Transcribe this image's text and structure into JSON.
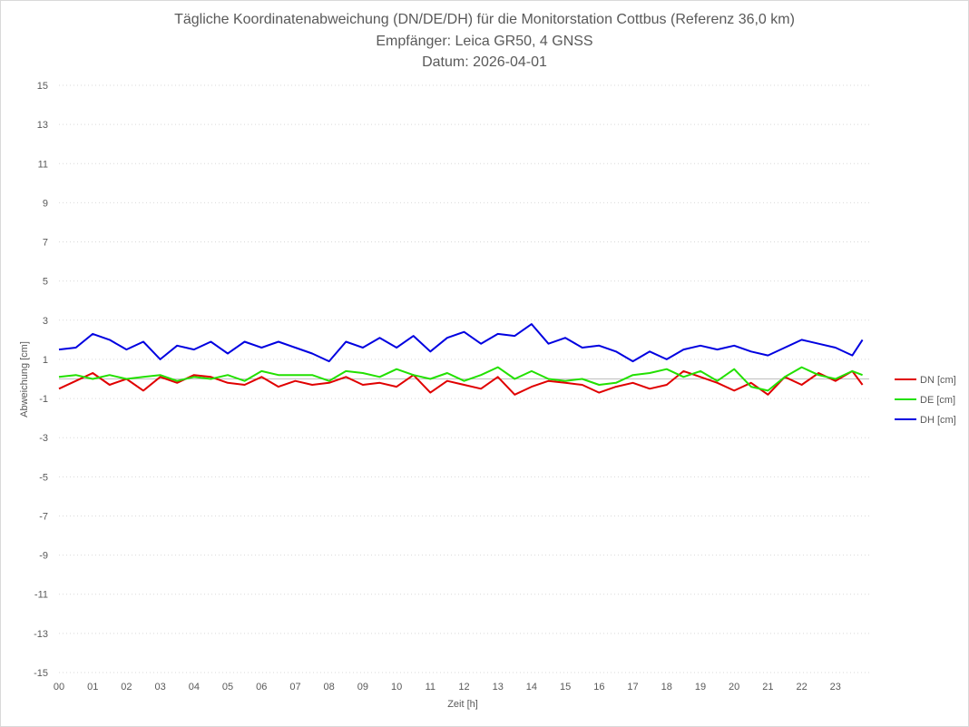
{
  "chart_data": {
    "type": "line",
    "title": "Tägliche Koordinatenabweichung (DN/DE/DH) für die Monitorstation Cottbus (Referenz 36,0 km)",
    "subtitle": "Empfänger: Leica GR50, 4 GNSS",
    "date_line": "Datum: 2026-04-01",
    "xlabel": "Zeit [h]",
    "ylabel": "Abweichung [cm]",
    "xlim": [
      0,
      24
    ],
    "ylim": [
      -15,
      15
    ],
    "x_ticks": [
      "00",
      "01",
      "02",
      "03",
      "04",
      "05",
      "06",
      "07",
      "08",
      "09",
      "10",
      "11",
      "12",
      "13",
      "14",
      "15",
      "16",
      "17",
      "18",
      "19",
      "20",
      "21",
      "22",
      "23"
    ],
    "y_ticks": [
      15,
      13,
      11,
      9,
      7,
      5,
      3,
      1,
      -1,
      -3,
      -5,
      -7,
      -9,
      -11,
      -13,
      -15
    ],
    "grid": "horizontal-dotted",
    "legend_position": "right",
    "x": [
      0.0,
      0.5,
      1.0,
      1.5,
      2.0,
      2.5,
      3.0,
      3.5,
      4.0,
      4.5,
      5.0,
      5.5,
      6.0,
      6.5,
      7.0,
      7.5,
      8.0,
      8.5,
      9.0,
      9.5,
      10.0,
      10.5,
      11.0,
      11.5,
      12.0,
      12.5,
      13.0,
      13.5,
      14.0,
      14.5,
      15.0,
      15.5,
      16.0,
      16.5,
      17.0,
      17.5,
      18.0,
      18.5,
      19.0,
      19.5,
      20.0,
      20.5,
      21.0,
      21.5,
      22.0,
      22.5,
      23.0,
      23.5,
      23.8
    ],
    "series": [
      {
        "name": "DN [cm]",
        "color": "#e00000",
        "values": [
          -0.5,
          -0.1,
          0.3,
          -0.3,
          0.0,
          -0.6,
          0.1,
          -0.2,
          0.2,
          0.1,
          -0.2,
          -0.3,
          0.1,
          -0.4,
          -0.1,
          -0.3,
          -0.2,
          0.1,
          -0.3,
          -0.2,
          -0.4,
          0.2,
          -0.7,
          -0.1,
          -0.3,
          -0.5,
          0.1,
          -0.8,
          -0.4,
          -0.1,
          -0.2,
          -0.3,
          -0.7,
          -0.4,
          -0.2,
          -0.5,
          -0.3,
          0.4,
          0.1,
          -0.2,
          -0.6,
          -0.2,
          -0.8,
          0.1,
          -0.3,
          0.3,
          -0.1,
          0.4,
          -0.3
        ]
      },
      {
        "name": "DE [cm]",
        "color": "#22e000",
        "values": [
          0.1,
          0.2,
          0.0,
          0.2,
          0.0,
          0.1,
          0.2,
          -0.1,
          0.1,
          0.0,
          0.2,
          -0.1,
          0.4,
          0.2,
          0.2,
          0.2,
          -0.1,
          0.4,
          0.3,
          0.1,
          0.5,
          0.2,
          0.0,
          0.3,
          -0.1,
          0.2,
          0.6,
          0.0,
          0.4,
          0.0,
          -0.1,
          0.0,
          -0.3,
          -0.2,
          0.2,
          0.3,
          0.5,
          0.1,
          0.4,
          -0.1,
          0.5,
          -0.4,
          -0.6,
          0.1,
          0.6,
          0.2,
          0.0,
          0.4,
          0.2
        ]
      },
      {
        "name": "DH [cm]",
        "color": "#0000e0",
        "values": [
          1.5,
          1.6,
          2.3,
          2.0,
          1.5,
          1.9,
          1.0,
          1.7,
          1.5,
          1.9,
          1.3,
          1.9,
          1.6,
          1.9,
          1.6,
          1.3,
          0.9,
          1.9,
          1.6,
          2.1,
          1.6,
          2.2,
          1.4,
          2.1,
          2.4,
          1.8,
          2.3,
          2.2,
          2.8,
          1.8,
          2.1,
          1.6,
          1.7,
          1.4,
          0.9,
          1.4,
          1.0,
          1.5,
          1.7,
          1.5,
          1.7,
          1.4,
          1.2,
          1.6,
          2.0,
          1.8,
          1.6,
          1.2,
          2.0
        ]
      }
    ]
  }
}
